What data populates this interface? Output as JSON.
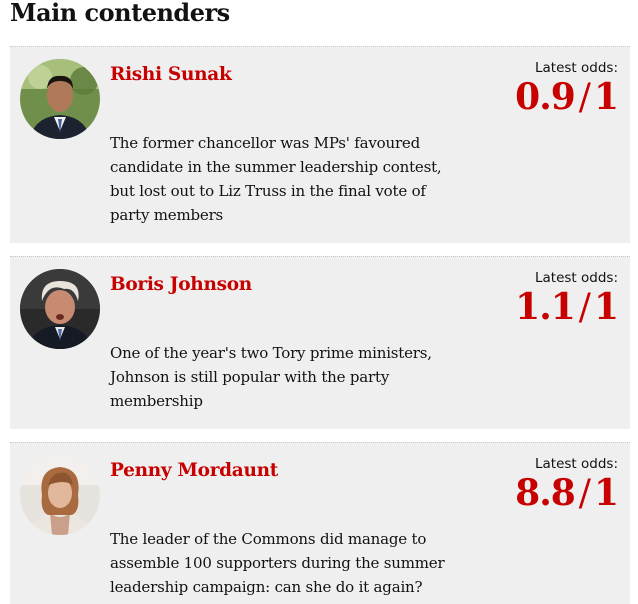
{
  "heading": "Main contenders",
  "odds_label": "Latest odds:",
  "contenders": [
    {
      "name": "Rishi Sunak",
      "description": "The former chancellor was MPs' favoured candidate in the summer leadership contest, but lost out to Liz Truss in the final vote of party members",
      "odds_num": "0.9",
      "odds_sep": "/",
      "odds_den": "1",
      "photo": "rishi-sunak-portrait"
    },
    {
      "name": "Boris Johnson",
      "description": "One of the year's two Tory prime ministers, Johnson is still popular with the party membership",
      "odds_num": "1.1",
      "odds_sep": "/",
      "odds_den": "1",
      "photo": "boris-johnson-portrait"
    },
    {
      "name": "Penny Mordaunt",
      "description": "The leader of the Commons did manage to assemble 100 supporters during the summer leadership campaign: can she do it again?",
      "odds_num": "8.8",
      "odds_sep": "/",
      "odds_den": "1",
      "photo": "penny-mordaunt-portrait"
    }
  ],
  "colors": {
    "accent": "#c70000",
    "card_background": "#efefef",
    "text": "#121212"
  }
}
